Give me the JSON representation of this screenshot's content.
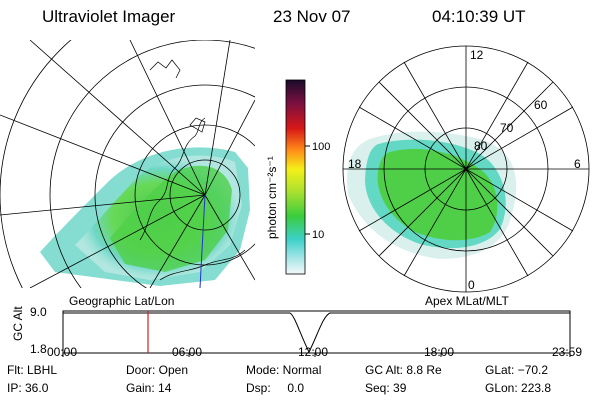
{
  "header": {
    "instrument": "Ultraviolet Imager",
    "date": "23 Nov 07",
    "time": "04:10:39 UT"
  },
  "left_panel": {
    "label": "Geographic Lat/Lon"
  },
  "right_panel": {
    "label": "Apex MLat/MLT",
    "lat_labels": [
      "80",
      "70",
      "60"
    ],
    "mlt_labels": {
      "top": "12",
      "bottom": "0",
      "left": "18",
      "right": "6"
    }
  },
  "colorbar": {
    "unit_label": "photon cm⁻²s⁻¹",
    "ticks": [
      "100",
      "10"
    ]
  },
  "altitude_plot": {
    "ylabel": "GC Alt",
    "y_ticks": [
      "9.0",
      "1.8"
    ],
    "x_ticks": [
      "00:00",
      "06:00",
      "12:00",
      "18:00",
      "23:59"
    ],
    "current_time_marker": "04:10:39"
  },
  "info": {
    "filter": "Flt: LBHL",
    "ip": "IP: 36.0",
    "door": "Door: Open",
    "gain": "Gain: 14",
    "mode": "Mode: Normal",
    "dsp": "Dsp:     0.0",
    "gc_alt": "GC Alt: 8.8 Re",
    "seq": "Seq: 39",
    "glat": "GLat: −70.2",
    "glon": "GLon: 223.8"
  },
  "colors": {
    "aurora_green": "#4fd24a",
    "aurora_cyan": "#5fd9d0",
    "marker_red": "#d22020",
    "meridian_blue": "#2233cc"
  }
}
